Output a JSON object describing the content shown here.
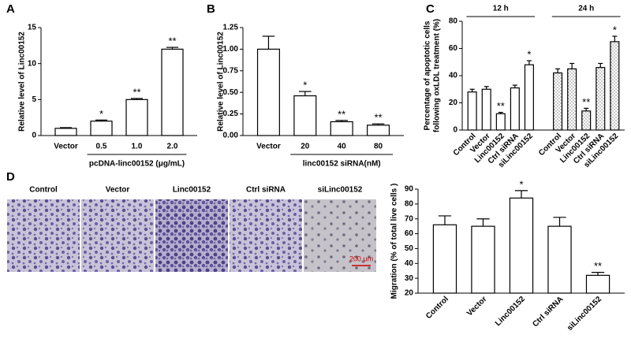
{
  "chart_data": [
    {
      "type": "bar",
      "label": "A",
      "ylabel": [
        "Relative level of Linc00152"
      ],
      "xlabel": "pcDNA-linc00152 (μg/mL)",
      "categories": [
        "Vector",
        "0.5",
        "1.0",
        "2.0"
      ],
      "values": [
        1,
        2,
        5,
        12
      ],
      "errors": [
        0.1,
        0.15,
        0.15,
        0.25
      ],
      "significance": [
        null,
        "*",
        "**",
        "**"
      ],
      "color": "#ffffff",
      "edgecolor": "#000000",
      "ylim": [
        0,
        15
      ],
      "yticks": [
        0,
        5,
        10,
        15
      ],
      "xtick_rotation": 0
    },
    {
      "type": "bar",
      "label": "B",
      "ylabel": [
        "Relative level of Linc00152"
      ],
      "xlabel": "linc00152 siRNA(nM)",
      "categories": [
        "Vector",
        "20",
        "40",
        "80"
      ],
      "values": [
        1.0,
        0.46,
        0.16,
        0.12
      ],
      "errors": [
        0.15,
        0.05,
        0.015,
        0.015
      ],
      "significance": [
        null,
        "*",
        "**",
        "**"
      ],
      "color": "#ffffff",
      "edgecolor": "#000000",
      "ylim": [
        0,
        1.25
      ],
      "yticks": [
        {
          "value": 0,
          "label": "0.00"
        },
        {
          "value": 0.25,
          "label": "0.25"
        },
        {
          "value": 0.5,
          "label": "0.50"
        },
        {
          "value": 0.75,
          "label": "0.75"
        },
        {
          "value": 1,
          "label": "1.00"
        },
        {
          "value": 1.25,
          "label": "1.25"
        }
      ],
      "xtick_rotation": 0
    },
    {
      "type": "bar",
      "label": "C",
      "ylabel": [
        "Percentage of apoptotic cells",
        "following oxLDL treatment (%)"
      ],
      "categories": [
        "Control",
        "Vector",
        "Linc00152",
        "Ctrl siRNA",
        "siLinc00152"
      ],
      "series": [
        {
          "name": "12 h",
          "color": "#ffffff",
          "pattern": "none",
          "values": [
            28,
            30,
            12,
            31,
            48
          ],
          "errors": [
            2,
            2,
            1,
            2,
            3
          ],
          "significance": [
            null,
            null,
            "**",
            null,
            "*"
          ]
        },
        {
          "name": "24 h",
          "color": "#ffffff",
          "pattern": "dotted",
          "values": [
            42,
            45,
            14,
            46,
            65
          ],
          "errors": [
            3,
            4,
            2,
            3,
            4
          ],
          "significance": [
            null,
            null,
            "**",
            null,
            "*"
          ]
        }
      ],
      "edgecolor": "#000000",
      "ylim": [
        0,
        80
      ],
      "yticks": [
        0,
        20,
        40,
        60,
        80
      ],
      "xtick_rotation": 45
    },
    {
      "type": "bar",
      "label": "D",
      "ylabel": [
        "Migration (% of total live cells )"
      ],
      "categories": [
        "Control",
        "Vector",
        "Linc00152",
        "Ctrl siRNA",
        "siLinc00152"
      ],
      "values": [
        66,
        65,
        84,
        65,
        32
      ],
      "errors": [
        6,
        5,
        5,
        6,
        2
      ],
      "significance": [
        null,
        null,
        "*",
        null,
        "**"
      ],
      "color": "#ffffff",
      "edgecolor": "#000000",
      "ylim": [
        20,
        90
      ],
      "yticks": [
        20,
        30,
        40,
        50,
        60,
        70,
        80,
        90
      ],
      "xtick_rotation": 45
    }
  ],
  "images": {
    "labels": [
      "Control",
      "Vector",
      "Linc00152",
      "Ctrl siRNA",
      "siLinc00152"
    ],
    "scale_bar": "200 μm"
  }
}
